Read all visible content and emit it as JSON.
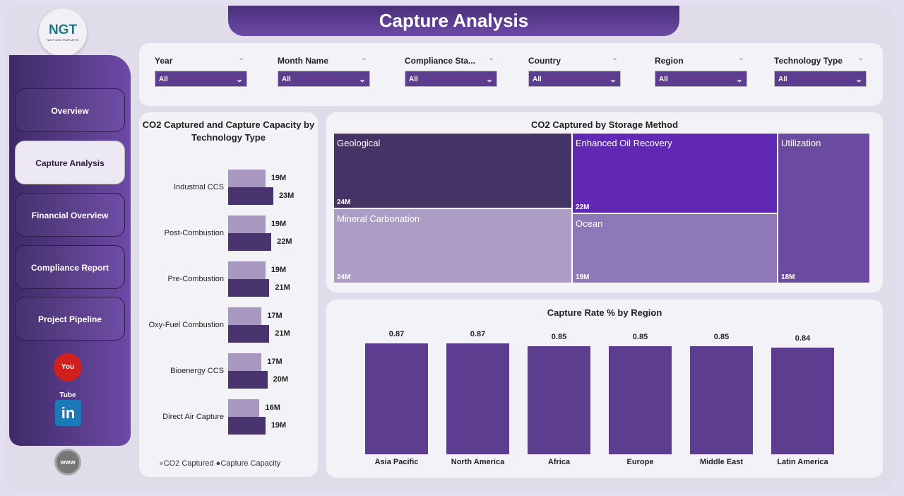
{
  "header": {
    "title": "Capture Analysis"
  },
  "logo": {
    "text": "NGT",
    "subtitle": "NEXT GEN TEMPLATES"
  },
  "nav": [
    {
      "label": "Overview"
    },
    {
      "label": "Capture Analysis",
      "active": true
    },
    {
      "label": "Financial Overview"
    },
    {
      "label": "Compliance Report"
    },
    {
      "label": "Project Pipeline"
    }
  ],
  "social": {
    "youtube": "You Tube",
    "linkedin": "in",
    "web": "www"
  },
  "filters": [
    {
      "label": "Year",
      "value": "All"
    },
    {
      "label": "Month Name",
      "value": "All"
    },
    {
      "label": "Compliance Sta...",
      "value": "All"
    },
    {
      "label": "Country",
      "value": "All"
    },
    {
      "label": "Region",
      "value": "All"
    },
    {
      "label": "Technology Type",
      "value": "All"
    }
  ],
  "colors": {
    "primary": "#5c3d8f",
    "light": "#a898c0",
    "dark": "#4a3470"
  },
  "chart_data": [
    {
      "type": "bar",
      "orientation": "horizontal",
      "title": "CO2 Captured and Capture Capacity by Technology Type",
      "categories": [
        "Industrial CCS",
        "Post-Combustion",
        "Pre-Combustion",
        "Oxy-Fuel Combustion",
        "Bioenergy CCS",
        "Direct Air Capture"
      ],
      "series": [
        {
          "name": "CO2 Captured",
          "color": "#a898c0",
          "values": [
            19,
            19,
            19,
            17,
            17,
            16
          ],
          "labels": [
            "19M",
            "19M",
            "19M",
            "17M",
            "17M",
            "16M"
          ]
        },
        {
          "name": "Capture Capacity",
          "color": "#4a3470",
          "values": [
            23,
            22,
            21,
            21,
            20,
            19
          ],
          "labels": [
            "23M",
            "22M",
            "21M",
            "21M",
            "20M",
            "19M"
          ]
        }
      ],
      "legend": "bottom"
    },
    {
      "type": "treemap",
      "title": "CO2 Captured by Storage Method",
      "items": [
        {
          "name": "Geological",
          "value": 24,
          "label": "24M",
          "color": "#463366"
        },
        {
          "name": "Mineral Carbonation",
          "value": 24,
          "label": "24M",
          "color": "#ab9dc4"
        },
        {
          "name": "Enhanced Oil Recovery",
          "value": 22,
          "label": "22M",
          "color": "#6028b4"
        },
        {
          "name": "Ocean",
          "value": 19,
          "label": "19M",
          "color": "#8f78b8"
        },
        {
          "name": "Utilization",
          "value": 18,
          "label": "18M",
          "color": "#6b4aa1"
        }
      ]
    },
    {
      "type": "bar",
      "title": "Capture Rate % by Region",
      "categories": [
        "Asia Pacific",
        "North America",
        "Africa",
        "Europe",
        "Middle East",
        "Latin America"
      ],
      "values": [
        0.87,
        0.87,
        0.85,
        0.85,
        0.85,
        0.84
      ],
      "labels": [
        "0.87",
        "0.87",
        "0.85",
        "0.85",
        "0.85",
        "0.84"
      ],
      "ylim": [
        0,
        0.89
      ],
      "color": "#5c3d8f"
    }
  ]
}
